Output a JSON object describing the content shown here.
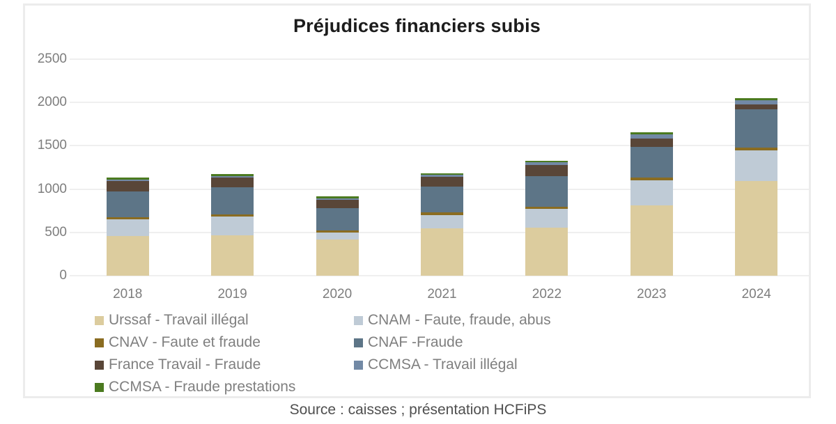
{
  "title": "Préjudices financiers subis",
  "source": "Source : caisses ; présentation HCFiPS",
  "chart_data": {
    "type": "bar",
    "stacked": true,
    "title": "Préjudices financiers subis",
    "categories": [
      "2018",
      "2019",
      "2020",
      "2021",
      "2022",
      "2023",
      "2024"
    ],
    "series": [
      {
        "name": "Urssaf - Travail illégal",
        "color": "#dccc9e",
        "values": [
          455,
          465,
          420,
          545,
          555,
          810,
          1090
        ]
      },
      {
        "name": "CNAM - Faute, fraude, abus",
        "color": "#bfcbd6",
        "values": [
          195,
          215,
          80,
          155,
          215,
          290,
          355
        ]
      },
      {
        "name": "CNAV - Faute et fraude",
        "color": "#8a6c21",
        "values": [
          25,
          25,
          25,
          35,
          25,
          30,
          35
        ]
      },
      {
        "name": "CNAF -Fraude",
        "color": "#5d7587",
        "values": [
          300,
          315,
          255,
          295,
          355,
          360,
          440
        ]
      },
      {
        "name": "France Travail - Fraude",
        "color": "#594638",
        "values": [
          115,
          110,
          100,
          115,
          125,
          95,
          60
        ]
      },
      {
        "name": "CCMSA - Travail illégal",
        "color": "#7289a5",
        "values": [
          20,
          20,
          15,
          20,
          35,
          45,
          45
        ]
      },
      {
        "name": "CCMSA - Fraude prestations",
        "color": "#4b7a1f",
        "values": [
          20,
          25,
          25,
          20,
          20,
          25,
          25
        ]
      }
    ],
    "totals": [
      1130,
      1175,
      920,
      1185,
      1330,
      1655,
      2050
    ],
    "ylim": [
      0,
      2500
    ],
    "yticks": [
      0,
      500,
      1000,
      1500,
      2000,
      2500
    ],
    "grid": true,
    "legend_position": "bottom",
    "gridline_color": "#efefef",
    "axis_label_color": "#7d7d7d"
  }
}
